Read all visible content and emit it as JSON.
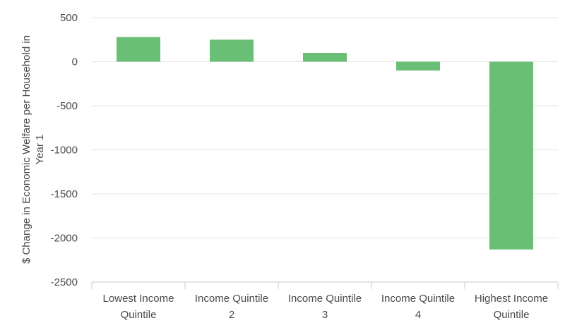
{
  "chart_data": {
    "type": "bar",
    "categories": [
      [
        "Lowest Income",
        "Quintile"
      ],
      [
        "Income Quintile",
        "2"
      ],
      [
        "Income Quintile",
        "3"
      ],
      [
        "Income Quintile",
        "4"
      ],
      [
        "Highest Income",
        "Quintile"
      ]
    ],
    "values": [
      280,
      250,
      100,
      -100,
      -2130
    ],
    "ylabel": [
      "$ Change in Economic Welfare per Household in",
      "Year 1"
    ],
    "ylim": [
      -2500,
      500
    ],
    "yticks": [
      500,
      0,
      -500,
      -1000,
      -1500,
      -2000,
      -2500
    ],
    "grid": true,
    "colors": {
      "bar": "#6abf77"
    }
  }
}
